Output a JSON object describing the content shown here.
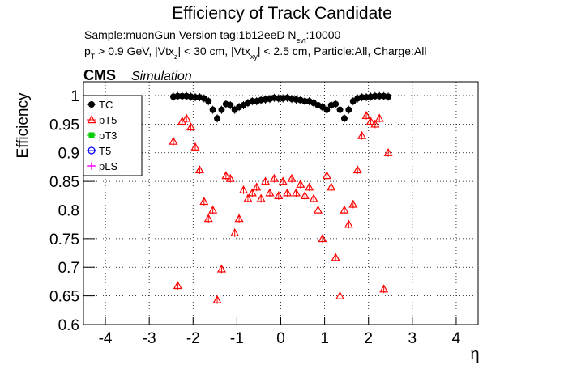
{
  "chart_data": {
    "type": "scatter",
    "title": "Efficiency of Track Candidate",
    "annotations": [
      {
        "segments": [
          {
            "text": "Sample:muonGun   Version tag:1b12eeD  N"
          },
          {
            "text": "evt",
            "subscript": true
          },
          {
            "text": ":10000"
          }
        ]
      },
      {
        "segments": [
          {
            "text": "p"
          },
          {
            "text": "T",
            "subscript": true
          },
          {
            "text": " > 0.9 GeV, |Vtx"
          },
          {
            "text": "z",
            "subscript": true
          },
          {
            "text": "| < 30 cm, |Vtx"
          },
          {
            "text": "xy",
            "subscript": true
          },
          {
            "text": "| < 2.5 cm, Particle:All, Charge:All"
          }
        ]
      }
    ],
    "experiment_label": "CMS",
    "experiment_sublabel": "Simulation",
    "xlabel": "η",
    "ylabel": "Efficiency",
    "xlim": [
      -4.5,
      4.5
    ],
    "ylim": [
      0.6,
      1.024
    ],
    "xticks": [
      -4,
      -3,
      -2,
      -1,
      0,
      1,
      2,
      3,
      4
    ],
    "yticks": [
      0.6,
      0.65,
      0.7,
      0.75,
      0.8,
      0.85,
      0.9,
      0.95,
      1
    ],
    "grid": true,
    "legend": "top-left",
    "x": [
      -2.45,
      -2.35,
      -2.25,
      -2.15,
      -2.05,
      -1.95,
      -1.85,
      -1.75,
      -1.65,
      -1.55,
      -1.45,
      -1.35,
      -1.25,
      -1.15,
      -1.05,
      -0.95,
      -0.85,
      -0.75,
      -0.65,
      -0.55,
      -0.45,
      -0.35,
      -0.25,
      -0.15,
      -0.05,
      0.05,
      0.15,
      0.25,
      0.35,
      0.45,
      0.55,
      0.65,
      0.75,
      0.85,
      0.95,
      1.05,
      1.15,
      1.25,
      1.35,
      1.45,
      1.55,
      1.65,
      1.75,
      1.85,
      1.95,
      2.05,
      2.15,
      2.25,
      2.35,
      2.45
    ],
    "series": [
      {
        "name": "TC",
        "color": "#000000",
        "marker": "circle-filled",
        "values": [
          0.998,
          0.999,
          0.999,
          0.999,
          0.998,
          0.997,
          0.997,
          0.995,
          0.99,
          0.975,
          0.96,
          0.975,
          0.985,
          0.983,
          0.975,
          0.98,
          0.983,
          0.987,
          0.99,
          0.99,
          0.992,
          0.993,
          0.994,
          0.996,
          0.995,
          0.995,
          0.996,
          0.994,
          0.993,
          0.992,
          0.99,
          0.99,
          0.987,
          0.983,
          0.98,
          0.975,
          0.983,
          0.985,
          0.975,
          0.96,
          0.975,
          0.99,
          0.995,
          0.997,
          0.997,
          0.998,
          0.999,
          0.999,
          0.999,
          0.998
        ]
      },
      {
        "name": "pT5",
        "color": "#ff0000",
        "marker": "triangle-open",
        "values": [
          0.92,
          0.668,
          0.955,
          0.96,
          0.945,
          0.91,
          0.87,
          0.815,
          0.785,
          0.8,
          0.643,
          0.697,
          0.86,
          0.855,
          0.76,
          0.785,
          0.835,
          0.82,
          0.83,
          0.84,
          0.82,
          0.85,
          0.83,
          0.855,
          0.825,
          0.85,
          0.83,
          0.855,
          0.83,
          0.845,
          0.825,
          0.84,
          0.82,
          0.8,
          0.75,
          0.86,
          0.84,
          0.717,
          0.65,
          0.8,
          0.775,
          0.81,
          0.87,
          0.93,
          0.965,
          0.955,
          0.95,
          0.96,
          0.662,
          0.9
        ]
      },
      {
        "name": "pT3",
        "color": "#00cc00",
        "marker": "square-filled",
        "values": [
          null,
          null,
          null,
          null,
          null,
          null,
          null,
          null,
          null,
          null,
          null,
          null,
          null,
          null,
          null,
          null,
          null,
          null,
          null,
          null,
          null,
          null,
          null,
          null,
          null,
          null,
          null,
          null,
          null,
          null,
          null,
          null,
          null,
          null,
          null,
          null,
          null,
          null,
          null,
          null,
          null,
          null,
          null,
          null,
          null,
          null,
          null,
          null,
          null,
          null
        ]
      },
      {
        "name": "T5",
        "color": "#0000ff",
        "marker": "circle-open",
        "values": [
          null,
          null,
          null,
          null,
          null,
          null,
          null,
          null,
          null,
          null,
          null,
          null,
          null,
          null,
          null,
          null,
          null,
          null,
          null,
          null,
          null,
          null,
          null,
          null,
          null,
          null,
          null,
          null,
          null,
          null,
          null,
          null,
          null,
          null,
          null,
          null,
          null,
          null,
          null,
          null,
          null,
          null,
          null,
          null,
          null,
          null,
          null,
          null,
          null,
          null
        ]
      },
      {
        "name": "pLS",
        "color": "#ff00ff",
        "marker": "cross",
        "values": [
          null,
          null,
          null,
          null,
          null,
          null,
          null,
          null,
          null,
          null,
          null,
          null,
          null,
          null,
          null,
          null,
          null,
          null,
          null,
          null,
          null,
          null,
          null,
          null,
          null,
          null,
          null,
          null,
          null,
          null,
          null,
          null,
          null,
          null,
          null,
          null,
          null,
          null,
          null,
          null,
          null,
          null,
          null,
          null,
          null,
          null,
          null,
          null,
          null,
          null
        ]
      }
    ]
  }
}
